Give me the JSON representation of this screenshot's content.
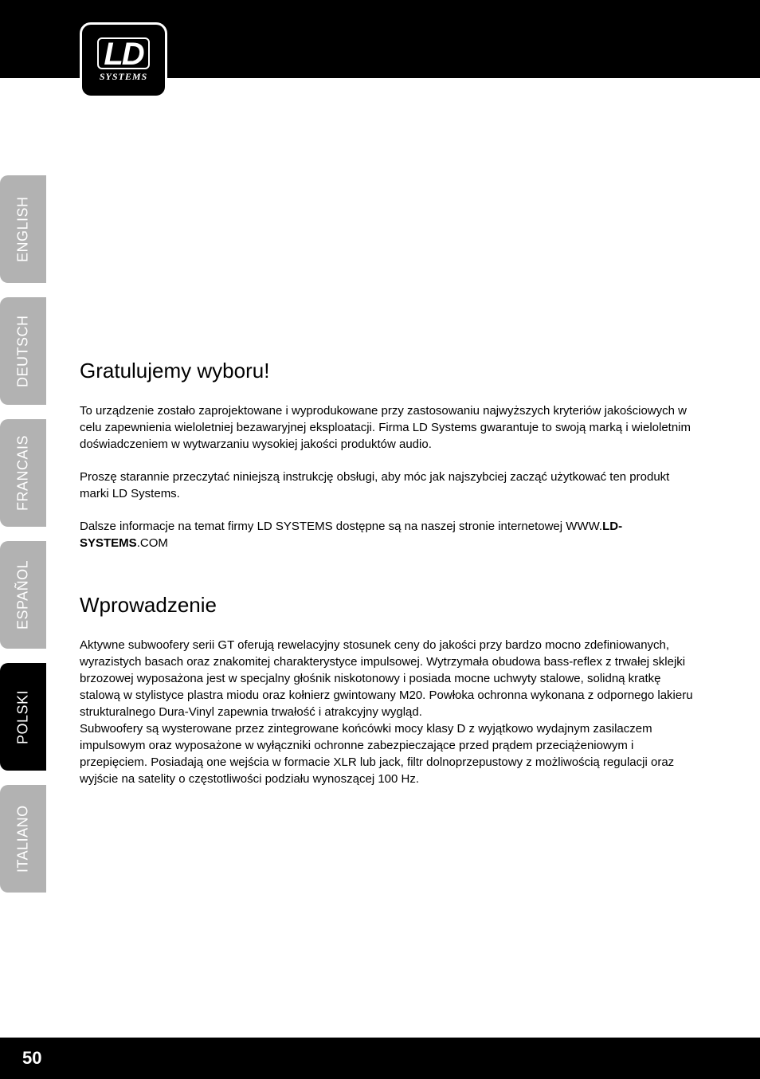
{
  "logo": {
    "main": "LD",
    "sub": "SYSTEMS"
  },
  "lang_tabs": [
    {
      "label": "ENGLISH",
      "active": false
    },
    {
      "label": "DEUTSCH",
      "active": false
    },
    {
      "label": "FRANCAIS",
      "active": false
    },
    {
      "label": "ESPAÑOL",
      "active": false
    },
    {
      "label": "POLSKI",
      "active": true
    },
    {
      "label": "ITALIANO",
      "active": false
    }
  ],
  "section1": {
    "title": "Gratulujemy wyboru!",
    "para1": "To urządzenie zostało zaprojektowane i wyprodukowane przy zastosowaniu najwyższych kryteriów jakościowych w celu zapewnienia wieloletniej bezawaryjnej eksploatacji. Firma LD Systems gwarantuje to swoją marką i wieloletnim doświadczeniem w wytwarzaniu wysokiej jakości produktów audio.",
    "para2": "Proszę starannie przeczytać niniejszą instrukcję obsługi, aby móc jak najszybciej zacząć użytkować ten produkt marki LD Systems.",
    "para3_pre": "Dalsze informacje na temat firmy LD SYSTEMS dostępne są na naszej stronie internetowej WWW.",
    "para3_bold": "LD-SYSTEMS",
    "para3_post": ".COM"
  },
  "section2": {
    "title": "Wprowadzenie",
    "para1": "Aktywne subwoofery serii GT oferują rewelacyjny stosunek ceny do jakości przy bardzo mocno zdefiniowanych, wyrazistych basach oraz znakomitej charakterystyce impulsowej. Wytrzymała obudowa bass-reflex z trwałej sklejki brzozowej wyposażona jest w specjalny głośnik niskotonowy i posiada mocne uchwyty stalowe, solidną kratkę stalową w stylistyce plastra miodu oraz kołnierz gwintowany M20. Powłoka ochronna wykonana z odpornego lakieru strukturalnego Dura-Vinyl zapewnia trwałość i atrakcyjny wygląd.",
    "para2": "Subwoofery są wysterowane przez zintegrowane końcówki mocy klasy D z wyjątkowo wydajnym zasilaczem impulsowym oraz wyposażone w wyłączniki ochronne zabezpieczające przed prądem przeciążeniowym i przepięciem. Posiadają one wejścia w formacie XLR lub jack, filtr dolnoprzepustowy z możliwością regulacji oraz wyjście na satelity o częstotliwości podziału wynoszącej 100 Hz."
  },
  "page_number": "50",
  "colors": {
    "header_bg": "#000000",
    "tab_inactive_bg": "#b2b2b2",
    "tab_active_bg": "#000000",
    "tab_text": "#ffffff",
    "body_text": "#000000",
    "page_bg": "#ffffff"
  },
  "typography": {
    "title_fontsize": 26,
    "body_fontsize": 15,
    "tab_fontsize": 18,
    "pagenum_fontsize": 22
  }
}
